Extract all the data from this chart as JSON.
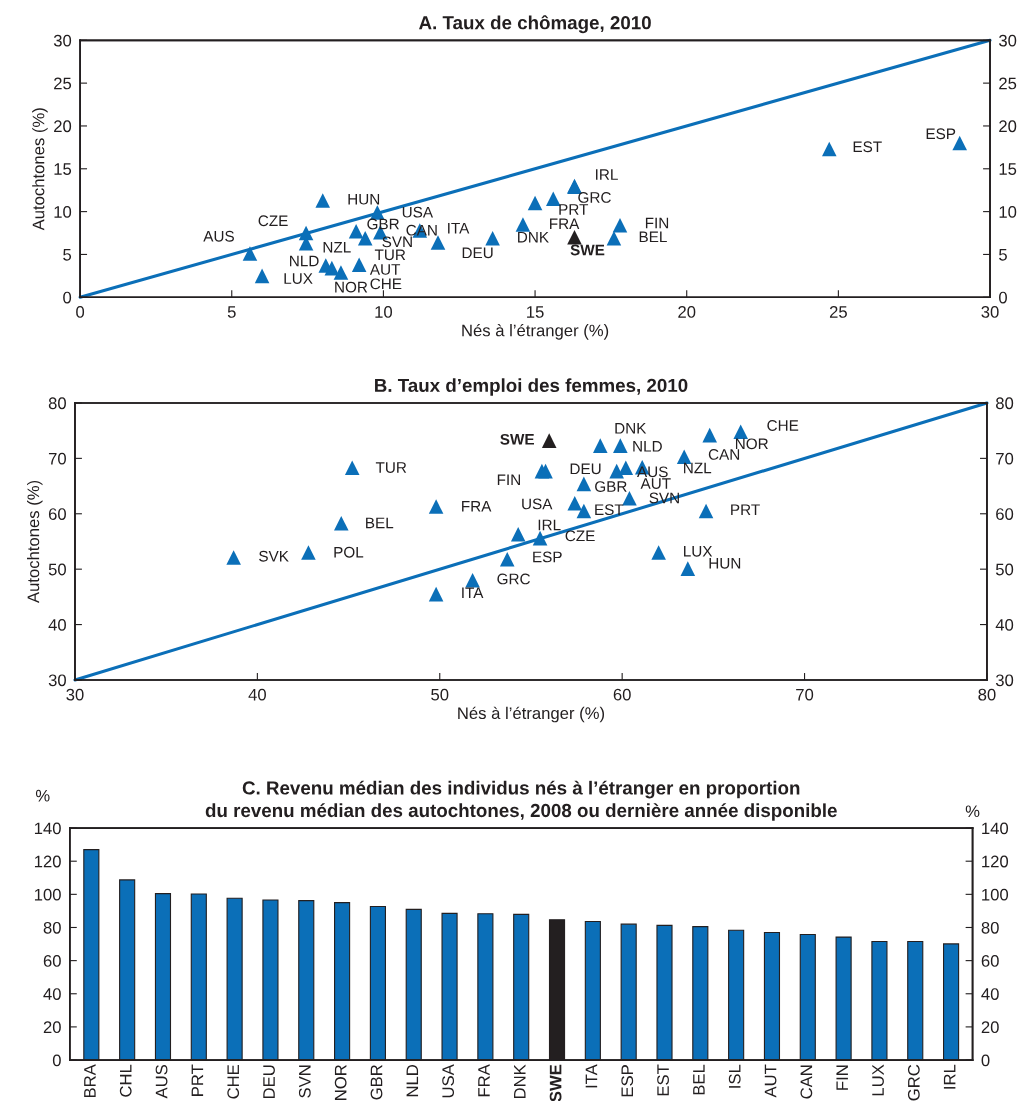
{
  "chart_data": [
    {
      "type": "scatter",
      "title": "A. Taux de chômage, 2010",
      "xlabel": "Nés à l’étranger (%)",
      "ylabel": "Autochtones (%)",
      "xlim": [
        0,
        30
      ],
      "xticks": [
        0,
        5,
        10,
        15,
        20,
        25,
        30
      ],
      "ylim": [
        0,
        30
      ],
      "yticks": [
        0,
        5,
        10,
        15,
        20,
        25,
        30
      ],
      "y2lim": [
        0,
        30
      ],
      "y2ticks": [
        0,
        5,
        10,
        15,
        20,
        25,
        30
      ],
      "series": [
        {
          "type": "scatter",
          "marker": "triangle",
          "x": [
            5.6,
            6.0,
            7.45,
            7.45,
            8.0,
            8.1,
            8.3,
            8.6,
            9.1,
            9.2,
            9.4,
            9.8,
            9.9,
            11.2,
            11.8,
            13.6,
            14.6,
            15.0,
            15.6,
            16.3,
            16.3,
            17.6,
            17.8,
            24.7,
            29.0,
            16.3
          ],
          "values": [
            5.1,
            2.5,
            7.5,
            6.3,
            11.3,
            3.7,
            3.4,
            2.9,
            7.7,
            3.8,
            6.9,
            9.9,
            7.6,
            7.8,
            6.4,
            6.9,
            8.5,
            11.0,
            11.5,
            12.9,
            13.0,
            6.9,
            8.4,
            17.3,
            18.0,
            7.0
          ],
          "colors": [
            "#0b6fb8",
            "#0b6fb8",
            "#0b6fb8",
            "#0b6fb8",
            "#0b6fb8",
            "#0b6fb8",
            "#0b6fb8",
            "#0b6fb8",
            "#0b6fb8",
            "#0b6fb8",
            "#0b6fb8",
            "#0b6fb8",
            "#0b6fb8",
            "#0b6fb8",
            "#0b6fb8",
            "#0b6fb8",
            "#0b6fb8",
            "#0b6fb8",
            "#0b6fb8",
            "#0b6fb8",
            "#0b6fb8",
            "#0b6fb8",
            "#0b6fb8",
            "#0b6fb8",
            "#0b6fb8",
            "#231f20"
          ]
        },
        {
          "type": "line",
          "line_style": "solid",
          "color": "#0b6fb8",
          "x": [
            0,
            30
          ],
          "values": [
            0,
            30
          ]
        }
      ],
      "annotations": [
        {
          "text": "AUS",
          "x": 5.6,
          "y": 5.1
        },
        {
          "text": "LUX",
          "x": 6.0,
          "y": 2.5
        },
        {
          "text": "CZE",
          "x": 7.45,
          "y": 7.5
        },
        {
          "text": "NLD",
          "x": 7.45,
          "y": 6.3
        },
        {
          "text": "HUN",
          "x": 8.0,
          "y": 11.3
        },
        {
          "text": "NZL",
          "x": 8.1,
          "y": 3.7
        },
        {
          "text": "CHE",
          "x": 8.3,
          "y": 3.4
        },
        {
          "text": "NOR",
          "x": 8.6,
          "y": 2.9
        },
        {
          "text": "GBR",
          "x": 9.1,
          "y": 7.7
        },
        {
          "text": "AUT",
          "x": 9.2,
          "y": 3.8
        },
        {
          "text": "TUR",
          "x": 9.4,
          "y": 6.9
        },
        {
          "text": "USA",
          "x": 9.8,
          "y": 9.9
        },
        {
          "text": "SVN",
          "x": 9.9,
          "y": 7.6
        },
        {
          "text": "CAN",
          "x": 11.2,
          "y": 7.8
        },
        {
          "text": "ITA",
          "x": 11.8,
          "y": 6.4
        },
        {
          "text": "DEU",
          "x": 13.6,
          "y": 6.9
        },
        {
          "text": "DNK",
          "x": 14.6,
          "y": 8.5
        },
        {
          "text": "FRA",
          "x": 15.0,
          "y": 11.0
        },
        {
          "text": "PRT",
          "x": 15.6,
          "y": 11.5
        },
        {
          "text": "GRC",
          "x": 16.3,
          "y": 12.9
        },
        {
          "text": "IRL",
          "x": 16.3,
          "y": 13.0
        },
        {
          "text": "BEL",
          "x": 17.6,
          "y": 6.9
        },
        {
          "text": "FIN",
          "x": 17.8,
          "y": 8.4
        },
        {
          "text": "EST",
          "x": 24.7,
          "y": 17.3
        },
        {
          "text": "ESP",
          "x": 29.0,
          "y": 18.0
        },
        {
          "text": "SWE",
          "x": 16.3,
          "y": 7.0
        }
      ]
    },
    {
      "type": "scatter",
      "title": "B. Taux d’emploi des femmes, 2010",
      "xlabel": "Nés à l’étranger (%)",
      "ylabel": "Autochtones (%)",
      "xlim": [
        30,
        80
      ],
      "xticks": [
        30,
        40,
        50,
        60,
        70,
        80
      ],
      "ylim": [
        30,
        80
      ],
      "yticks": [
        30,
        40,
        50,
        60,
        70,
        80
      ],
      "y2lim": [
        30,
        80
      ],
      "y2ticks": [
        30,
        40,
        50,
        60,
        70,
        80
      ],
      "series": [
        {
          "type": "scatter",
          "marker": "triangle",
          "x": [
            38.7,
            42.8,
            44.6,
            45.2,
            49.8,
            49.8,
            51.8,
            53.7,
            54.3,
            55.5,
            55.6,
            55.8,
            57.4,
            57.9,
            57.9,
            58.8,
            59.7,
            59.9,
            60.2,
            60.4,
            61.1,
            62.0,
            63.4,
            63.6,
            64.6,
            64.8,
            66.5,
            56.0
          ],
          "values": [
            52.1,
            53.0,
            58.3,
            68.3,
            61.3,
            45.5,
            48.0,
            51.8,
            56.3,
            55.6,
            67.7,
            67.7,
            61.9,
            60.5,
            65.4,
            72.3,
            67.7,
            72.3,
            68.3,
            62.8,
            68.4,
            53.0,
            70.3,
            50.1,
            60.5,
            74.2,
            74.8,
            73.2
          ],
          "colors": [
            "#0b6fb8",
            "#0b6fb8",
            "#0b6fb8",
            "#0b6fb8",
            "#0b6fb8",
            "#0b6fb8",
            "#0b6fb8",
            "#0b6fb8",
            "#0b6fb8",
            "#0b6fb8",
            "#0b6fb8",
            "#0b6fb8",
            "#0b6fb8",
            "#0b6fb8",
            "#0b6fb8",
            "#0b6fb8",
            "#0b6fb8",
            "#0b6fb8",
            "#0b6fb8",
            "#0b6fb8",
            "#0b6fb8",
            "#0b6fb8",
            "#0b6fb8",
            "#0b6fb8",
            "#0b6fb8",
            "#0b6fb8",
            "#0b6fb8",
            "#231f20"
          ]
        },
        {
          "type": "line",
          "line_style": "solid",
          "color": "#0b6fb8",
          "x": [
            30,
            80
          ],
          "values": [
            30,
            80
          ]
        }
      ],
      "annotations": [
        {
          "text": "SVK",
          "x": 38.7,
          "y": 52.1
        },
        {
          "text": "POL",
          "x": 42.8,
          "y": 53.0
        },
        {
          "text": "BEL",
          "x": 44.6,
          "y": 58.3
        },
        {
          "text": "TUR",
          "x": 45.2,
          "y": 68.3
        },
        {
          "text": "FRA",
          "x": 49.8,
          "y": 61.3
        },
        {
          "text": "ITA",
          "x": 49.8,
          "y": 45.5
        },
        {
          "text": "GRC",
          "x": 51.8,
          "y": 48.0
        },
        {
          "text": "ESP",
          "x": 53.7,
          "y": 51.8
        },
        {
          "text": "IRL",
          "x": 54.3,
          "y": 56.3
        },
        {
          "text": "CZE",
          "x": 55.5,
          "y": 55.6
        },
        {
          "text": "FIN",
          "x": 55.6,
          "y": 67.7
        },
        {
          "text": "DEU",
          "x": 55.8,
          "y": 67.7
        },
        {
          "text": "USA",
          "x": 57.4,
          "y": 61.9
        },
        {
          "text": "EST",
          "x": 57.9,
          "y": 60.5
        },
        {
          "text": "GBR",
          "x": 57.9,
          "y": 65.4
        },
        {
          "text": "DNK",
          "x": 58.8,
          "y": 72.3
        },
        {
          "text": "AUS",
          "x": 59.7,
          "y": 67.7
        },
        {
          "text": "NLD",
          "x": 59.9,
          "y": 72.3
        },
        {
          "text": "AUT",
          "x": 60.2,
          "y": 68.3
        },
        {
          "text": "SVN",
          "x": 60.4,
          "y": 62.8
        },
        {
          "text": "NZL",
          "x": 61.1,
          "y": 68.4
        },
        {
          "text": "LUX",
          "x": 62.0,
          "y": 53.0
        },
        {
          "text": "CAN",
          "x": 63.4,
          "y": 70.3
        },
        {
          "text": "HUN",
          "x": 63.6,
          "y": 50.1
        },
        {
          "text": "PRT",
          "x": 64.6,
          "y": 60.5
        },
        {
          "text": "NOR",
          "x": 64.8,
          "y": 74.2
        },
        {
          "text": "CHE",
          "x": 66.5,
          "y": 74.8
        },
        {
          "text": "SWE",
          "x": 56.0,
          "y": 73.2
        }
      ]
    },
    {
      "type": "bar",
      "title": "C. Revenu médian des individus nés à l’étranger en proportion\ndu revenu médian des autochtones, 2008 ou dernière année disponible",
      "ylabel": "%",
      "y2label": "%",
      "categories": [
        "BRA",
        "CHL",
        "AUS",
        "PRT",
        "CHE",
        "DEU",
        "SVN",
        "NOR",
        "GBR",
        "NLD",
        "USA",
        "FRA",
        "DNK",
        "SWE",
        "ITA",
        "ESP",
        "EST",
        "BEL",
        "ISL",
        "AUT",
        "CAN",
        "FIN",
        "LUX",
        "GRC",
        "IRL"
      ],
      "values": [
        127,
        108.7,
        100.4,
        100.2,
        97.6,
        96.6,
        96.2,
        95.0,
        92.7,
        90.9,
        88.5,
        88.3,
        87.9,
        84.6,
        83.6,
        82.0,
        81.3,
        80.5,
        78.3,
        77.0,
        75.8,
        74.2,
        71.5,
        71.5,
        70.1
      ],
      "colors": [
        "#0b6fb8",
        "#0b6fb8",
        "#0b6fb8",
        "#0b6fb8",
        "#0b6fb8",
        "#0b6fb8",
        "#0b6fb8",
        "#0b6fb8",
        "#0b6fb8",
        "#0b6fb8",
        "#0b6fb8",
        "#0b6fb8",
        "#0b6fb8",
        "#231f20",
        "#0b6fb8",
        "#0b6fb8",
        "#0b6fb8",
        "#0b6fb8",
        "#0b6fb8",
        "#0b6fb8",
        "#0b6fb8",
        "#0b6fb8",
        "#0b6fb8",
        "#0b6fb8",
        "#0b6fb8"
      ],
      "ylim": [
        0,
        140
      ],
      "yticks": [
        0,
        20,
        40,
        60,
        80,
        100,
        120,
        140
      ],
      "y2lim": [
        0,
        140
      ],
      "y2ticks": [
        0,
        20,
        40,
        60,
        80,
        100,
        120,
        140
      ]
    }
  ]
}
